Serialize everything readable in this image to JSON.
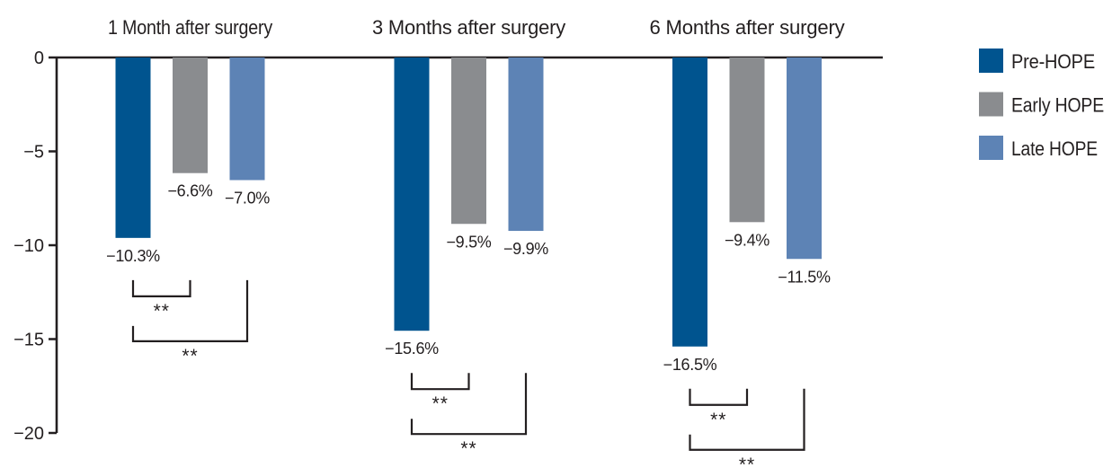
{
  "figure": {
    "description": "Grouped bar chart of percent weight change after surgery by HOPE group",
    "background_color": "#ffffff",
    "ink_color": "#231f20"
  },
  "chart_data": {
    "type": "bar",
    "groups": [
      "1 Month after surgery",
      "3 Months after surgery",
      "6 Months after surgery"
    ],
    "series": [
      {
        "name": "Pre-HOPE",
        "color": "#00548f",
        "values": [
          -10.3,
          -15.6,
          -16.5
        ],
        "value_labels": [
          "−10.3%",
          "−15.6%",
          "−16.5%"
        ]
      },
      {
        "name": "Early HOPE",
        "color": "#8a8c8f",
        "values": [
          -6.6,
          -9.5,
          -9.4
        ],
        "value_labels": [
          "−6.6%",
          "−9.5%",
          "−9.4%"
        ]
      },
      {
        "name": "Late HOPE",
        "color": "#5d83b5",
        "values": [
          -7.0,
          -9.9,
          -11.5
        ],
        "value_labels": [
          "−7.0%",
          "−9.9%",
          "−11.5%"
        ]
      }
    ],
    "y_axis": {
      "min": -20,
      "max": 0,
      "ticks": [
        0,
        -5,
        -10,
        -15,
        -20
      ],
      "tick_labels": [
        "0",
        "−5",
        "−10",
        "−15",
        "−20"
      ]
    },
    "legend": {
      "position": "right",
      "entries": [
        "Pre-HOPE",
        "Early HOPE",
        "Late HOPE"
      ]
    },
    "comparisons": [
      {
        "group_index": 0,
        "series_a": 0,
        "series_b": 1,
        "label": "**"
      },
      {
        "group_index": 0,
        "series_a": 0,
        "series_b": 2,
        "label": "**"
      },
      {
        "group_index": 1,
        "series_a": 0,
        "series_b": 1,
        "label": "**"
      },
      {
        "group_index": 1,
        "series_a": 0,
        "series_b": 2,
        "label": "**"
      },
      {
        "group_index": 2,
        "series_a": 0,
        "series_b": 1,
        "label": "**"
      },
      {
        "group_index": 2,
        "series_a": 0,
        "series_b": 2,
        "label": "**"
      }
    ],
    "grid": false
  }
}
